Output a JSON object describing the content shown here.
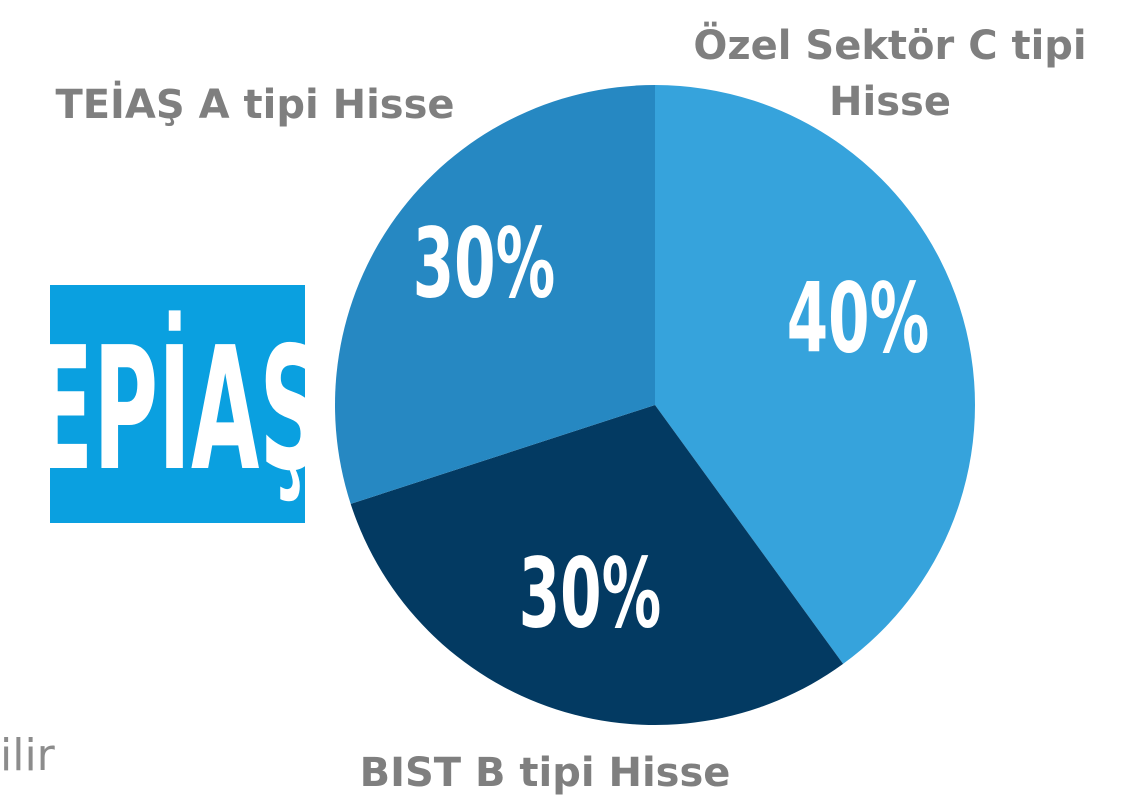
{
  "chart_data": {
    "type": "pie",
    "categories": [
      "Özel Sektör C tipi Hisse",
      "BIST B tipi Hisse",
      "TEİAŞ A tipi Hisse"
    ],
    "values": [
      40,
      30,
      30
    ],
    "value_labels": [
      "40%",
      "30%",
      "30%"
    ],
    "colors": [
      "#36a3dc",
      "#033a62",
      "#2688c2"
    ]
  },
  "logo": {
    "text": "EPİAŞ"
  },
  "footer_fragment": "ilir"
}
